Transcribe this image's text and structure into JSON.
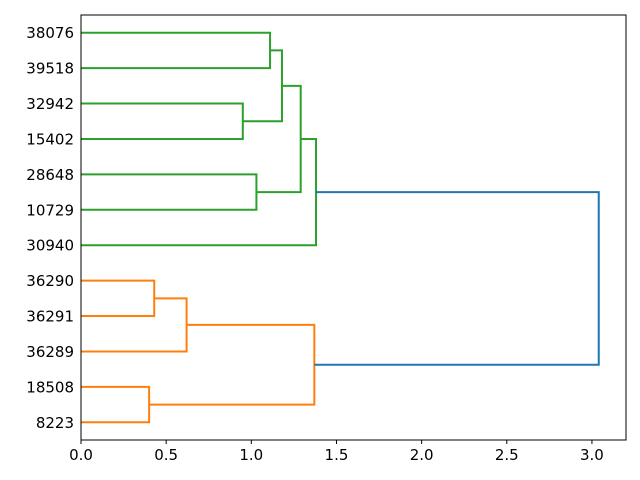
{
  "chart_data": {
    "type": "dendrogram",
    "orientation": "right",
    "leaves": [
      "38076",
      "39518",
      "32942",
      "15402",
      "28648",
      "10729",
      "30940",
      "36290",
      "36291",
      "36289",
      "18508",
      "8223"
    ],
    "x_ticks": [
      0.0,
      0.5,
      1.0,
      1.5,
      2.0,
      2.5,
      3.0
    ],
    "xlim": [
      0,
      3.2
    ],
    "grid": false,
    "legend": false,
    "colors": {
      "cluster_green": "#2ca02c",
      "cluster_orange": "#ff7f0e",
      "root_blue": "#1f77b4",
      "axis": "#000000",
      "background": "#ffffff"
    },
    "merges": [
      {
        "id": "A",
        "left": "38076",
        "right": "39518",
        "height": 1.11,
        "color": "#2ca02c"
      },
      {
        "id": "B",
        "left": "32942",
        "right": "15402",
        "height": 0.95,
        "color": "#2ca02c"
      },
      {
        "id": "C",
        "left": "A",
        "right": "B",
        "height": 1.18,
        "color": "#2ca02c"
      },
      {
        "id": "D",
        "left": "28648",
        "right": "10729",
        "height": 1.03,
        "color": "#2ca02c"
      },
      {
        "id": "E",
        "left": "C",
        "right": "D",
        "height": 1.29,
        "color": "#2ca02c"
      },
      {
        "id": "F",
        "left": "E",
        "right": "30940",
        "height": 1.38,
        "color": "#2ca02c"
      },
      {
        "id": "G",
        "left": "36290",
        "right": "36291",
        "height": 0.43,
        "color": "#ff7f0e"
      },
      {
        "id": "H",
        "left": "G",
        "right": "36289",
        "height": 0.62,
        "color": "#ff7f0e"
      },
      {
        "id": "I",
        "left": "18508",
        "right": "8223",
        "height": 0.4,
        "color": "#ff7f0e"
      },
      {
        "id": "J",
        "left": "H",
        "right": "I",
        "height": 1.37,
        "color": "#ff7f0e"
      },
      {
        "id": "K",
        "left": "F",
        "right": "J",
        "height": 3.04,
        "color": "#1f77b4"
      }
    ]
  }
}
